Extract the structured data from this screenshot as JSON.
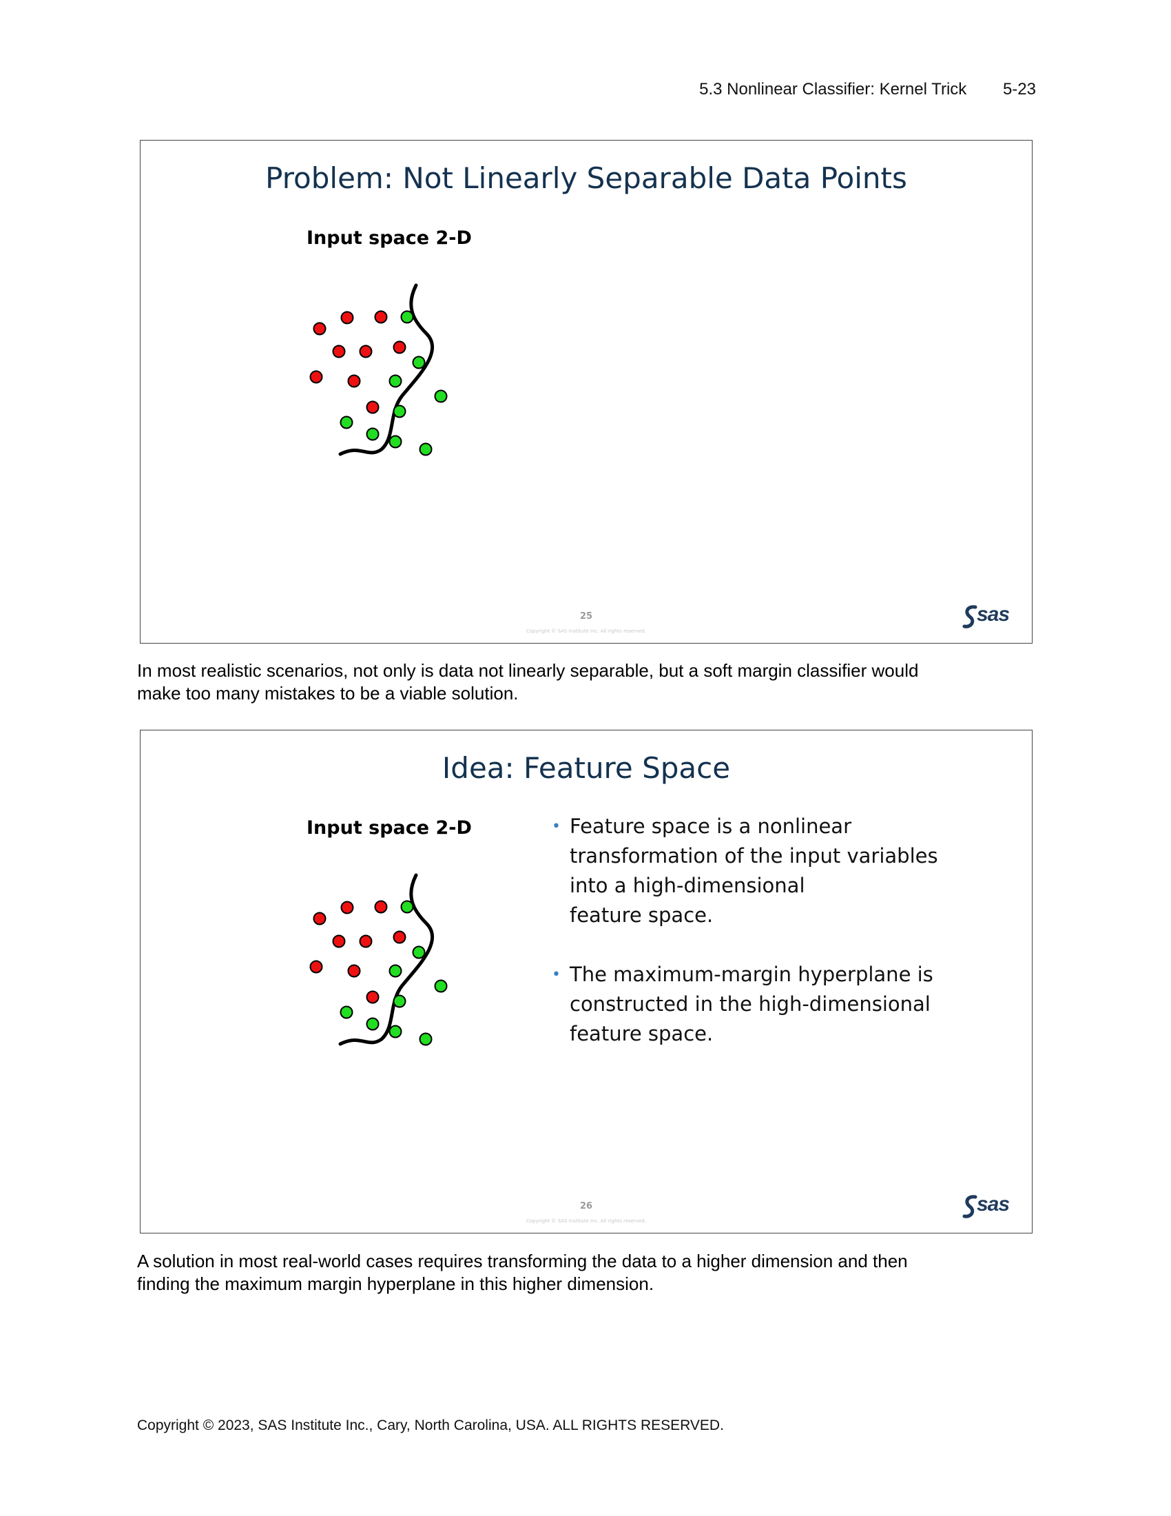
{
  "header": {
    "section_title": "5.3  Nonlinear Classifier: Kernel Trick",
    "page_number": "5-23"
  },
  "slides": [
    {
      "title": "Problem: Not Linearly Separable Data Points",
      "input_label": "Input space 2-D",
      "slide_number": "25",
      "copyright": "Copyright © SAS Institute Inc. All rights reserved.",
      "logo_text": "sas",
      "point_colors": {
        "red": "#ee1111",
        "green": "#22dd22",
        "outline": "#000000"
      }
    },
    {
      "title": "Idea: Feature Space",
      "input_label": "Input space 2-D",
      "bullets": [
        "Feature space is a nonlinear\ntransformation of the input variables\ninto a high-dimensional\nfeature space.",
        "The maximum-margin hyperplane is\nconstructed in the high-dimensional\nfeature space."
      ],
      "slide_number": "26",
      "copyright": "Copyright © SAS Institute Inc. All rights reserved.",
      "logo_text": "sas",
      "bullet_marker": "•",
      "accent_color": "#3a7fc1"
    }
  ],
  "paragraphs": [
    "In most realistic scenarios, not only is data not linearly separable, but a soft margin classifier would\nmake too many mistakes to be a viable solution.",
    "A solution in most real-world cases requires transforming the data to a higher dimension and then\nfinding the maximum margin hyperplane in this higher dimension."
  ],
  "footer": {
    "copyright": "Copyright © 2023, SAS Institute Inc., Cary, North Carolina, USA. ALL RIGHTS RESERVED."
  }
}
